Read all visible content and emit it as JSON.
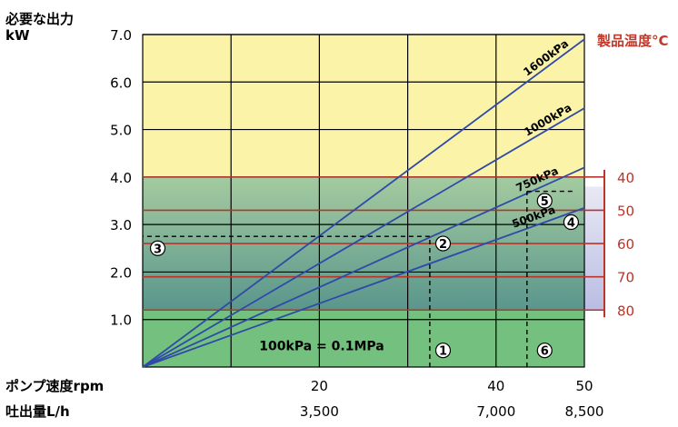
{
  "chart_data": {
    "type": "line",
    "title": "",
    "ylabel_line1": "必要な出力",
    "ylabel_line2": "kW",
    "xlabel_speed": "ポンプ速度rpm",
    "xlabel_flow": "吐出量L/h",
    "right_axis_title": "製品温度°C",
    "ylim": [
      0,
      7
    ],
    "xlim": [
      0,
      50
    ],
    "y_ticks": [
      {
        "v": 1,
        "label": "1.0"
      },
      {
        "v": 2,
        "label": "2.0"
      },
      {
        "v": 3,
        "label": "3.0"
      },
      {
        "v": 4,
        "label": "4.0"
      },
      {
        "v": 5,
        "label": "5.0"
      },
      {
        "v": 6,
        "label": "6.0"
      },
      {
        "v": 7,
        "label": "7.0"
      }
    ],
    "speed_ticks": [
      {
        "v": 20,
        "label": "20"
      },
      {
        "v": 40,
        "label": "40"
      },
      {
        "v": 50,
        "label": "50"
      }
    ],
    "flow_ticks": [
      {
        "v": 20,
        "label": "3,500"
      },
      {
        "v": 40,
        "label": "7,000"
      },
      {
        "v": 50,
        "label": "8,500"
      }
    ],
    "series": [
      {
        "name": "1600kPa",
        "x": [
          0,
          50
        ],
        "y": [
          0,
          6.9
        ]
      },
      {
        "name": "1000kPa",
        "x": [
          0,
          50
        ],
        "y": [
          0,
          5.45
        ]
      },
      {
        "name": "750kPa",
        "x": [
          0,
          50
        ],
        "y": [
          0,
          4.2
        ]
      },
      {
        "name": "500kPa",
        "x": [
          0,
          50
        ],
        "y": [
          0,
          3.35
        ]
      },
      {
        "name": "100kPa = 0.1MPa",
        "x": [
          0,
          50
        ],
        "y": [
          0,
          0
        ]
      }
    ],
    "temperature_lines": [
      {
        "label": "40",
        "y": 4.0
      },
      {
        "label": "50",
        "y": 3.3
      },
      {
        "label": "60",
        "y": 2.6
      },
      {
        "label": "70",
        "y": 1.9
      },
      {
        "label": "80",
        "y": 1.2
      }
    ],
    "example_path": {
      "speed": 32.5,
      "power": 2.75,
      "speed2": 43.5,
      "power2": 3.7
    },
    "markers": [
      {
        "label": "①",
        "x": 34,
        "y": 0.35
      },
      {
        "label": "②",
        "x": 34,
        "y": 2.6
      },
      {
        "label": "③",
        "x": 1.7,
        "y": 2.5
      },
      {
        "label": "④",
        "x": 48.5,
        "y": 3.05
      },
      {
        "label": "⑤",
        "x": 45.5,
        "y": 3.5
      },
      {
        "label": "⑥",
        "x": 45.5,
        "y": 0.35
      }
    ],
    "colors": {
      "zone_top": "#faf3a8",
      "zone_middle_top": "#9fc79c",
      "zone_middle_bottom": "#5f9c8c",
      "zone_bottom": "#74c07e",
      "line": "#2f4aa8",
      "temp_line": "#b8352a",
      "temp_panel": "#c5c8e6",
      "grid": "#000000"
    }
  }
}
